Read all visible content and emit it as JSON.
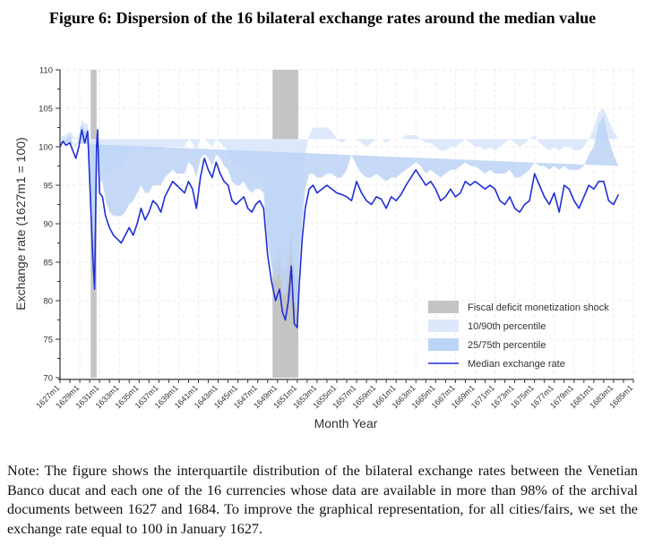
{
  "figure": {
    "title": "Figure 6: Dispersion of the 16 bilateral exchange rates around the median value",
    "note": "Note: The figure shows the interquartile distribution of the bilateral exchange rates between the Venetian Banco ducat and each one of the 16 currencies whose data are available in more than 98% of the archival documents between 1627 and 1684. To improve the graphical representation, for all cities/fairs, we set the exchange rate equal to 100 in January 1627."
  },
  "chart_data": {
    "type": "line",
    "title": "Figure 6: Dispersion of the 16 bilateral exchange rates around the median value",
    "xlabel": "Month Year",
    "ylabel": "Exchange rate (1627m1 = 100)",
    "xlim": [
      1627,
      1685
    ],
    "ylim": [
      70,
      110
    ],
    "yticks": [
      70,
      75,
      80,
      85,
      90,
      95,
      100,
      105,
      110
    ],
    "xtick_labels": [
      "1627m1",
      "1629m1",
      "1631m1",
      "1633m1",
      "1635m1",
      "1637m1",
      "1639m1",
      "1641m1",
      "1643m1",
      "1645m1",
      "1647m1",
      "1649m1",
      "1651m1",
      "1653m1",
      "1655m1",
      "1657m1",
      "1659m1",
      "1661m1",
      "1663m1",
      "1665m1",
      "1667m1",
      "1669m1",
      "1671m1",
      "1673m1",
      "1675m1",
      "1677m1",
      "1679m1",
      "1681m1",
      "1683m1",
      "1685m1"
    ],
    "grid": true,
    "legend_position": "bottom-right",
    "legend": [
      {
        "label": "Fiscal deficit monetization shock",
        "kind": "shock",
        "color": "#c4c4c4"
      },
      {
        "label": "10/90th percentile",
        "kind": "band1090",
        "color": "#dde9fb"
      },
      {
        "label": "25/75th percentile",
        "kind": "band2575",
        "color": "#bcd4f6"
      },
      {
        "label": "Median exchange rate",
        "kind": "median",
        "color": "#1f2fd6"
      }
    ],
    "shocks": [
      {
        "start": 1630.1,
        "end": 1630.7
      },
      {
        "start": 1648.5,
        "end": 1651.1
      }
    ],
    "x": [
      1627.0,
      1627.3,
      1627.6,
      1628.0,
      1628.3,
      1628.6,
      1628.9,
      1629.2,
      1629.5,
      1629.8,
      1630.1,
      1630.3,
      1630.5,
      1630.7,
      1630.8,
      1631.0,
      1631.3,
      1631.6,
      1632.0,
      1632.4,
      1632.8,
      1633.2,
      1633.6,
      1634.0,
      1634.4,
      1634.8,
      1635.2,
      1635.6,
      1636.0,
      1636.4,
      1636.8,
      1637.2,
      1637.6,
      1638.0,
      1638.4,
      1638.8,
      1639.2,
      1639.6,
      1640.0,
      1640.4,
      1640.8,
      1641.2,
      1641.6,
      1642.0,
      1642.4,
      1642.8,
      1643.2,
      1643.6,
      1644.0,
      1644.4,
      1644.8,
      1645.2,
      1645.6,
      1646.0,
      1646.4,
      1646.8,
      1647.2,
      1647.6,
      1648.0,
      1648.4,
      1648.8,
      1649.2,
      1649.5,
      1649.8,
      1650.1,
      1650.4,
      1650.7,
      1651.0,
      1651.2,
      1651.5,
      1651.8,
      1652.2,
      1652.6,
      1653.0,
      1653.5,
      1654.0,
      1654.5,
      1655.0,
      1655.5,
      1656.0,
      1656.5,
      1657.0,
      1657.5,
      1658.0,
      1658.5,
      1659.0,
      1659.5,
      1660.0,
      1660.5,
      1661.0,
      1661.5,
      1662.0,
      1662.5,
      1663.0,
      1663.5,
      1664.0,
      1664.5,
      1665.0,
      1665.5,
      1666.0,
      1666.5,
      1667.0,
      1667.5,
      1668.0,
      1668.5,
      1669.0,
      1669.5,
      1670.0,
      1670.5,
      1671.0,
      1671.5,
      1672.0,
      1672.5,
      1673.0,
      1673.5,
      1674.0,
      1674.5,
      1675.0,
      1675.5,
      1676.0,
      1676.5,
      1677.0,
      1677.5,
      1678.0,
      1678.5,
      1679.0,
      1679.5,
      1680.0,
      1680.5,
      1681.0,
      1681.5,
      1682.0,
      1682.5,
      1683.0,
      1683.5,
      1684.0
    ],
    "series": [
      {
        "name": "Median exchange rate",
        "values": [
          100.0,
          100.7,
          100.2,
          100.5,
          99.5,
          98.5,
          100.0,
          102.2,
          100.5,
          102.0,
          92.5,
          86.0,
          81.5,
          100.0,
          102.2,
          94.0,
          93.5,
          91.0,
          89.5,
          88.5,
          88.0,
          87.5,
          88.5,
          89.5,
          88.5,
          90.0,
          92.0,
          90.5,
          91.5,
          93.0,
          92.5,
          91.5,
          93.5,
          94.5,
          95.5,
          95.0,
          94.5,
          94.0,
          95.5,
          94.5,
          92.0,
          96.0,
          98.5,
          97.0,
          96.0,
          98.0,
          96.5,
          95.5,
          95.0,
          93.0,
          92.5,
          93.0,
          93.5,
          92.0,
          91.5,
          92.5,
          93.0,
          92.0,
          86.0,
          82.5,
          80.0,
          81.5,
          78.5,
          77.5,
          80.0,
          84.5,
          77.0,
          76.5,
          82.0,
          88.0,
          92.0,
          94.5,
          95.0,
          94.0,
          94.5,
          95.0,
          94.5,
          94.0,
          93.8,
          93.5,
          93.0,
          95.5,
          94.0,
          93.0,
          92.5,
          93.5,
          93.2,
          92.0,
          93.5,
          93.0,
          93.8,
          95.0,
          96.0,
          97.0,
          96.0,
          95.0,
          95.5,
          94.5,
          93.0,
          93.5,
          94.5,
          93.5,
          94.0,
          95.5,
          95.0,
          95.5,
          95.0,
          94.5,
          95.0,
          94.5,
          93.0,
          92.5,
          93.5,
          92.0,
          91.5,
          92.5,
          93.0,
          96.5,
          95.0,
          93.5,
          92.5,
          94.0,
          91.5,
          95.0,
          94.5,
          93.0,
          92.0,
          93.5,
          95.0,
          94.5,
          95.5,
          95.5,
          93.0,
          92.5,
          93.8
        ]
      },
      {
        "name": "25th percentile",
        "values": [
          99.5,
          99.8,
          99.0,
          99.0,
          98.5,
          97.5,
          98.0,
          98.5,
          96.5,
          95.0,
          91.0,
          84.5,
          80.0,
          97.5,
          98.0,
          92.5,
          91.5,
          89.5,
          88.0,
          87.0,
          86.5,
          86.5,
          87.0,
          88.0,
          87.5,
          88.0,
          89.5,
          89.5,
          90.0,
          91.0,
          91.0,
          90.5,
          91.5,
          92.5,
          93.0,
          93.0,
          92.5,
          92.0,
          93.0,
          92.5,
          90.5,
          93.5,
          95.0,
          94.5,
          93.5,
          94.5,
          94.0,
          93.0,
          92.0,
          90.5,
          90.0,
          90.5,
          91.0,
          90.5,
          90.0,
          90.5,
          91.0,
          90.5,
          84.5,
          80.5,
          78.0,
          79.0,
          76.5,
          75.5,
          77.0,
          78.5,
          75.0,
          74.5,
          78.0,
          85.0,
          90.0,
          92.0,
          92.5,
          92.0,
          92.5,
          92.5,
          92.0,
          92.0,
          91.5,
          91.5,
          91.5,
          92.5,
          92.0,
          91.5,
          91.0,
          91.5,
          91.5,
          91.0,
          91.5,
          91.5,
          92.0,
          92.5,
          93.0,
          93.0,
          93.0,
          92.5,
          93.0,
          92.5,
          91.5,
          92.0,
          92.5,
          92.0,
          92.5,
          93.0,
          93.0,
          93.0,
          93.0,
          92.5,
          93.0,
          92.5,
          91.0,
          90.5,
          91.0,
          90.5,
          90.0,
          90.5,
          91.0,
          92.0,
          91.5,
          91.0,
          90.5,
          91.0,
          90.0,
          91.0,
          91.0,
          90.5,
          90.5,
          91.0,
          91.0,
          91.0,
          91.5,
          91.5,
          91.0,
          91.0,
          91.5
        ]
      },
      {
        "name": "75th percentile",
        "values": [
          100.5,
          101.0,
          101.0,
          101.5,
          100.5,
          100.0,
          101.0,
          103.0,
          102.0,
          102.5,
          94.0,
          89.0,
          84.0,
          101.0,
          102.5,
          95.5,
          95.5,
          93.0,
          91.5,
          91.0,
          91.0,
          91.0,
          91.5,
          92.5,
          93.0,
          94.0,
          95.0,
          94.0,
          94.0,
          95.0,
          95.0,
          95.0,
          96.0,
          96.5,
          97.0,
          96.5,
          96.5,
          96.5,
          98.0,
          97.5,
          96.0,
          98.5,
          99.0,
          98.5,
          97.5,
          99.0,
          98.5,
          97.5,
          97.0,
          95.5,
          95.0,
          95.0,
          95.5,
          94.5,
          94.0,
          94.5,
          94.5,
          94.0,
          87.5,
          84.5,
          82.5,
          84.0,
          81.0,
          80.5,
          83.0,
          86.5,
          80.0,
          79.0,
          84.5,
          90.0,
          94.5,
          96.5,
          96.5,
          96.0,
          96.0,
          96.5,
          96.5,
          96.0,
          96.0,
          97.0,
          99.0,
          97.5,
          96.5,
          96.0,
          96.0,
          96.5,
          96.0,
          95.5,
          96.0,
          96.0,
          96.5,
          97.0,
          97.5,
          98.0,
          97.5,
          96.5,
          97.0,
          96.5,
          96.0,
          96.5,
          97.0,
          97.0,
          97.5,
          98.0,
          97.5,
          97.5,
          97.0,
          96.5,
          97.0,
          96.5,
          96.5,
          96.5,
          97.0,
          96.0,
          96.0,
          96.5,
          97.0,
          98.0,
          97.5,
          97.5,
          97.0,
          97.5,
          97.0,
          97.5,
          97.0,
          97.0,
          97.0,
          97.5,
          99.0,
          100.0,
          103.0,
          104.0,
          101.0,
          99.0,
          97.5
        ]
      },
      {
        "name": "10th percentile",
        "values": [
          98.5,
          99.0,
          98.5,
          98.0,
          97.5,
          96.5,
          96.5,
          95.5,
          93.0,
          92.0,
          89.5,
          83.5,
          78.5,
          95.5,
          95.5,
          91.0,
          90.0,
          88.0,
          86.5,
          86.0,
          85.5,
          85.5,
          86.0,
          87.0,
          86.5,
          87.0,
          88.0,
          88.0,
          89.0,
          90.0,
          90.0,
          89.5,
          90.5,
          91.0,
          91.5,
          91.5,
          91.0,
          90.5,
          91.0,
          90.5,
          89.0,
          90.5,
          89.5,
          91.0,
          91.0,
          91.5,
          90.5,
          89.0,
          88.0,
          86.5,
          86.0,
          86.5,
          88.0,
          88.0,
          88.5,
          89.0,
          89.5,
          89.0,
          83.0,
          79.0,
          76.5,
          77.5,
          75.0,
          73.5,
          74.5,
          76.5,
          73.5,
          73.0,
          76.5,
          83.5,
          88.0,
          90.0,
          90.5,
          90.0,
          90.5,
          90.5,
          90.0,
          90.0,
          90.0,
          90.0,
          90.0,
          90.5,
          90.5,
          90.0,
          89.5,
          90.0,
          90.0,
          89.5,
          90.0,
          90.0,
          90.5,
          91.0,
          91.0,
          91.0,
          91.0,
          90.5,
          91.0,
          91.0,
          90.0,
          90.5,
          91.0,
          91.0,
          91.0,
          91.5,
          91.5,
          91.0,
          91.0,
          90.5,
          91.0,
          90.5,
          89.0,
          88.5,
          88.5,
          87.5,
          87.5,
          88.5,
          89.0,
          89.5,
          89.0,
          88.5,
          88.5,
          89.0,
          88.5,
          89.5,
          89.5,
          89.0,
          89.0,
          89.5,
          89.5,
          89.5,
          90.0,
          90.0,
          90.0,
          90.0,
          90.0
        ]
      },
      {
        "name": "90th percentile",
        "values": [
          101.0,
          101.5,
          101.5,
          102.0,
          101.5,
          101.0,
          101.5,
          103.5,
          103.0,
          103.0,
          95.5,
          91.0,
          86.0,
          102.0,
          103.0,
          97.0,
          97.5,
          97.0,
          96.5,
          97.0,
          97.0,
          97.5,
          98.5,
          99.0,
          99.5,
          100.0,
          100.0,
          99.5,
          99.0,
          99.5,
          99.5,
          99.5,
          100.0,
          100.0,
          100.0,
          100.0,
          100.0,
          100.0,
          101.0,
          100.5,
          99.5,
          101.0,
          101.0,
          100.5,
          100.0,
          101.0,
          100.5,
          100.0,
          99.5,
          98.0,
          97.5,
          97.5,
          97.5,
          96.5,
          96.0,
          96.5,
          96.5,
          96.0,
          89.0,
          86.5,
          85.0,
          86.5,
          84.0,
          84.0,
          86.0,
          89.0,
          83.5,
          82.5,
          87.0,
          94.0,
          99.0,
          101.5,
          102.5,
          102.5,
          102.5,
          102.5,
          102.0,
          101.0,
          100.5,
          101.0,
          101.0,
          101.0,
          100.5,
          100.0,
          100.5,
          101.0,
          101.0,
          100.5,
          101.0,
          101.0,
          101.0,
          101.5,
          101.5,
          101.5,
          101.0,
          100.5,
          100.5,
          100.0,
          99.5,
          99.5,
          100.0,
          100.0,
          100.5,
          101.0,
          100.5,
          100.0,
          100.0,
          99.5,
          100.0,
          99.5,
          100.0,
          100.5,
          101.0,
          100.5,
          100.0,
          100.5,
          101.0,
          101.5,
          100.5,
          100.0,
          99.5,
          100.0,
          99.5,
          100.0,
          100.0,
          99.5,
          99.5,
          100.0,
          101.0,
          102.5,
          104.5,
          105.0,
          103.5,
          102.0,
          101.0
        ]
      }
    ]
  }
}
